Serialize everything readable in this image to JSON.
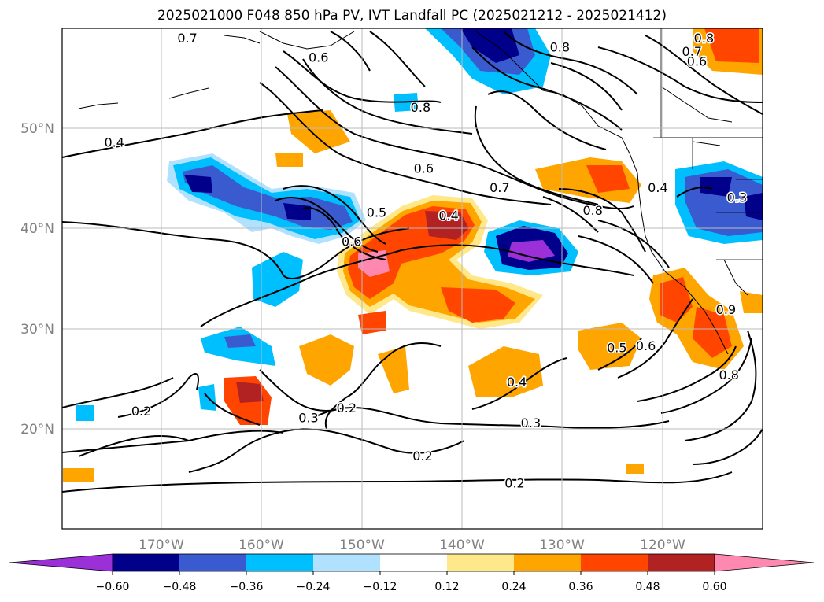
{
  "title": "2025021000 F048 850 hPa PV, IVT Landfall PC (2025021212 - 2025021412)",
  "lon_ticks": [
    "170°W",
    "160°W",
    "150°W",
    "140°W",
    "130°W",
    "120°W"
  ],
  "lat_ticks": [
    "50°N",
    "40°N",
    "30°N",
    "20°N"
  ],
  "colorbar": {
    "colors": [
      "#9b30d9",
      "#00008b",
      "#3a5bd0",
      "#00bfff",
      "#b0e2ff",
      "#ffffff",
      "#ffe88a",
      "#ffa500",
      "#ff4500",
      "#b22222",
      "#ff88b0"
    ],
    "labels": [
      "-0.60",
      "-0.48",
      "-0.36",
      "-0.24",
      "-0.12",
      "0.12",
      "0.24",
      "0.36",
      "0.48",
      "0.60"
    ]
  },
  "contour_labels": [
    {
      "text": "0.7",
      "lon": -167.4,
      "lat": 58.9
    },
    {
      "text": "0.6",
      "lon": -154.3,
      "lat": 57.0
    },
    {
      "text": "0.8",
      "lon": -130.2,
      "lat": 58.0
    },
    {
      "text": "0.8",
      "lon": -144.1,
      "lat": 52.0
    },
    {
      "text": "0.4",
      "lon": -174.7,
      "lat": 48.5
    },
    {
      "text": "0.6",
      "lon": -143.8,
      "lat": 45.9
    },
    {
      "text": "0.7",
      "lon": -136.2,
      "lat": 44.0
    },
    {
      "text": "0.5",
      "lon": -148.5,
      "lat": 41.5
    },
    {
      "text": "0.4",
      "lon": -141.3,
      "lat": 41.2
    },
    {
      "text": "0.8",
      "lon": -126.9,
      "lat": 41.7
    },
    {
      "text": "0.6",
      "lon": -151.0,
      "lat": 38.6
    },
    {
      "text": "0.4",
      "lon": -120.4,
      "lat": 44.0
    },
    {
      "text": "0.3",
      "lon": -112.5,
      "lat": 43.0
    },
    {
      "text": "0.2",
      "lon": -172.0,
      "lat": 21.7
    },
    {
      "text": "0.3",
      "lon": -155.3,
      "lat": 21.0
    },
    {
      "text": "0.2",
      "lon": -151.5,
      "lat": 22.0
    },
    {
      "text": "0.4",
      "lon": -134.5,
      "lat": 24.6
    },
    {
      "text": "0.5",
      "lon": -124.5,
      "lat": 28.0
    },
    {
      "text": "0.6",
      "lon": -121.6,
      "lat": 28.2
    },
    {
      "text": "0.3",
      "lon": -133.1,
      "lat": 20.5
    },
    {
      "text": "0.2",
      "lon": -143.9,
      "lat": 17.2
    },
    {
      "text": "0.2",
      "lon": -134.7,
      "lat": 14.5
    },
    {
      "text": "0.8",
      "lon": -113.3,
      "lat": 25.3
    },
    {
      "text": "0.9",
      "lon": -113.6,
      "lat": 31.8
    },
    {
      "text": "0.8",
      "lon": -115.8,
      "lat": 58.9
    },
    {
      "text": "0.7",
      "lon": -117.0,
      "lat": 57.6
    },
    {
      "text": "0.6",
      "lon": -116.5,
      "lat": 56.6
    }
  ]
}
